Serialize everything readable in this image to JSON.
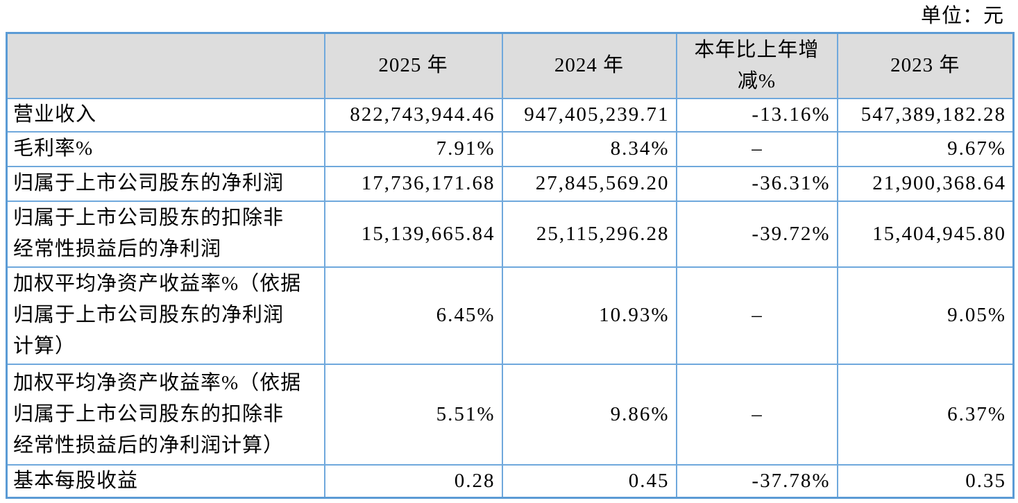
{
  "unit_note": "单位：元",
  "table": {
    "headers": [
      "",
      "2025 年",
      "2024 年",
      "本年比上年增\n减%",
      "2023 年"
    ],
    "rows": [
      {
        "cells": [
          "营业收入",
          "822,743,944.46",
          "947,405,239.71",
          "-13.16%",
          "547,389,182.28"
        ]
      },
      {
        "cells": [
          "毛利率%",
          "7.91%",
          "8.34%",
          "–",
          "9.67%"
        ]
      },
      {
        "cells": [
          "归属于上市公司股东的净利润",
          "17,736,171.68",
          "27,845,569.20",
          "-36.31%",
          "21,900,368.64"
        ]
      },
      {
        "cells": [
          "归属于上市公司股东的扣除非\n经常性损益后的净利润",
          "15,139,665.84",
          "25,115,296.28",
          "-39.72%",
          "15,404,945.80"
        ]
      },
      {
        "cells": [
          "加权平均净资产收益率%（依据\n归属于上市公司股东的净利润\n计算）",
          "6.45%",
          "10.93%",
          "–",
          "9.05%"
        ]
      },
      {
        "cells": [
          "加权平均净资产收益率%（依据\n归属于上市公司股东的扣除非\n经常性损益后的净利润计算）",
          "5.51%",
          "9.86%",
          "–",
          "6.37%"
        ]
      },
      {
        "cells": [
          "基本每股收益",
          "0.28",
          "0.45",
          "-37.78%",
          "0.35"
        ]
      }
    ]
  }
}
